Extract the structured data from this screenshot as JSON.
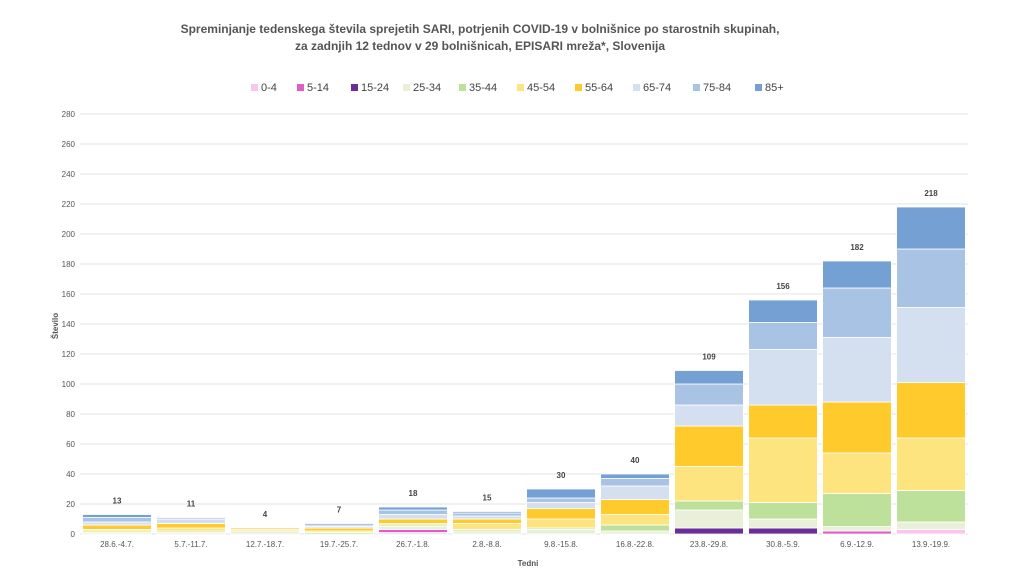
{
  "chart_data": {
    "type": "bar",
    "stacked": true,
    "title_line1": "Spreminjanje tedenskega števila sprejetih SARI, potrjenih COVID-19 v bolnišnice po starostnih skupinah,",
    "title_line2": "za zadnjih 12 tednov v 29 bolnišnicah, EPISARI mreža*, Slovenija",
    "xlabel": "Tedni",
    "ylabel": "Število",
    "ylim": [
      0,
      280
    ],
    "yticks": [
      "0",
      "20",
      "40",
      "60",
      "80",
      "100",
      "120",
      "140",
      "160",
      "180",
      "200",
      "220",
      "240",
      "260",
      "280"
    ],
    "grid": true,
    "legend_position": "top",
    "categories": [
      "28.6.-4.7.",
      "5.7.-11.7.",
      "12.7.-18.7.",
      "19.7.-25.7.",
      "26.7.-1.8.",
      "2.8.-8.8.",
      "9.8.-15.8.",
      "16.8.-22.8.",
      "23.8.-29.8.",
      "30.8.-5.9.",
      "6.9.-12.9.",
      "13.9.-19.9."
    ],
    "totals": [
      "13",
      "11",
      "4",
      "7",
      "18",
      "15",
      "30",
      "40",
      "109",
      "156",
      "182",
      "218"
    ],
    "series": [
      {
        "name": "0-4",
        "color": "#f9c7ec",
        "values": [
          0,
          0,
          0,
          0,
          1,
          0,
          0,
          0,
          0,
          0,
          0,
          3
        ]
      },
      {
        "name": "5-14",
        "color": "#e05ccc",
        "values": [
          0,
          0,
          0,
          0,
          2,
          0,
          0,
          0,
          0,
          0,
          2,
          0
        ]
      },
      {
        "name": "15-24",
        "color": "#6a2d9a",
        "values": [
          0,
          0,
          0,
          0,
          0,
          0,
          0,
          0,
          4,
          4,
          0,
          0
        ]
      },
      {
        "name": "25-34",
        "color": "#e9efd9",
        "values": [
          1,
          1,
          2,
          0,
          2,
          2,
          3,
          2,
          12,
          6,
          3,
          5
        ]
      },
      {
        "name": "35-44",
        "color": "#bde19a",
        "values": [
          1,
          1,
          0,
          1,
          1,
          1,
          1,
          4,
          6,
          11,
          22,
          21
        ]
      },
      {
        "name": "45-54",
        "color": "#fde47e",
        "values": [
          1,
          2,
          1,
          1,
          1,
          4,
          6,
          7,
          23,
          43,
          27,
          35
        ]
      },
      {
        "name": "55-64",
        "color": "#ffca2c",
        "values": [
          3,
          3,
          1,
          2,
          3,
          3,
          7,
          10,
          27,
          22,
          34,
          37
        ]
      },
      {
        "name": "65-74",
        "color": "#d4dff0",
        "values": [
          2,
          3,
          0,
          1,
          3,
          2,
          4,
          9,
          14,
          37,
          43,
          50
        ]
      },
      {
        "name": "75-84",
        "color": "#a9c3e4",
        "values": [
          3,
          1,
          0,
          1,
          3,
          2,
          3,
          5,
          14,
          18,
          33,
          39
        ]
      },
      {
        "name": "85+",
        "color": "#75a0d4",
        "values": [
          2,
          0,
          0,
          1,
          2,
          1,
          6,
          3,
          9,
          15,
          18,
          28
        ]
      }
    ]
  }
}
